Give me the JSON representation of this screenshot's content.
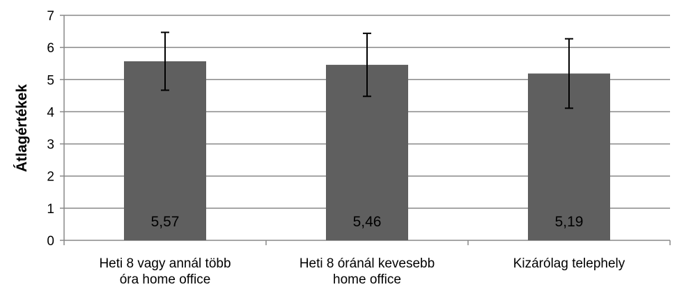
{
  "chart_data": {
    "type": "bar",
    "title": "",
    "xlabel": "",
    "ylabel": "Átlagértékek",
    "ylim": [
      0,
      7
    ],
    "yticks": [
      "0",
      "1",
      "2",
      "3",
      "4",
      "5",
      "6",
      "7"
    ],
    "grid": true,
    "categories": [
      [
        "Heti 8 vagy annál több",
        "óra home office"
      ],
      [
        "Heti 8 óránál kevesebb",
        "home office"
      ],
      [
        "Kizárólag telephely"
      ]
    ],
    "values": [
      5.57,
      5.46,
      5.19
    ],
    "value_labels": [
      "5,57",
      "5,46",
      "5,19"
    ],
    "error_low": [
      4.67,
      4.48,
      4.11
    ],
    "error_high": [
      6.47,
      6.44,
      6.27
    ],
    "bar_color": "#5f5f5f",
    "grid_color": "#888888"
  }
}
